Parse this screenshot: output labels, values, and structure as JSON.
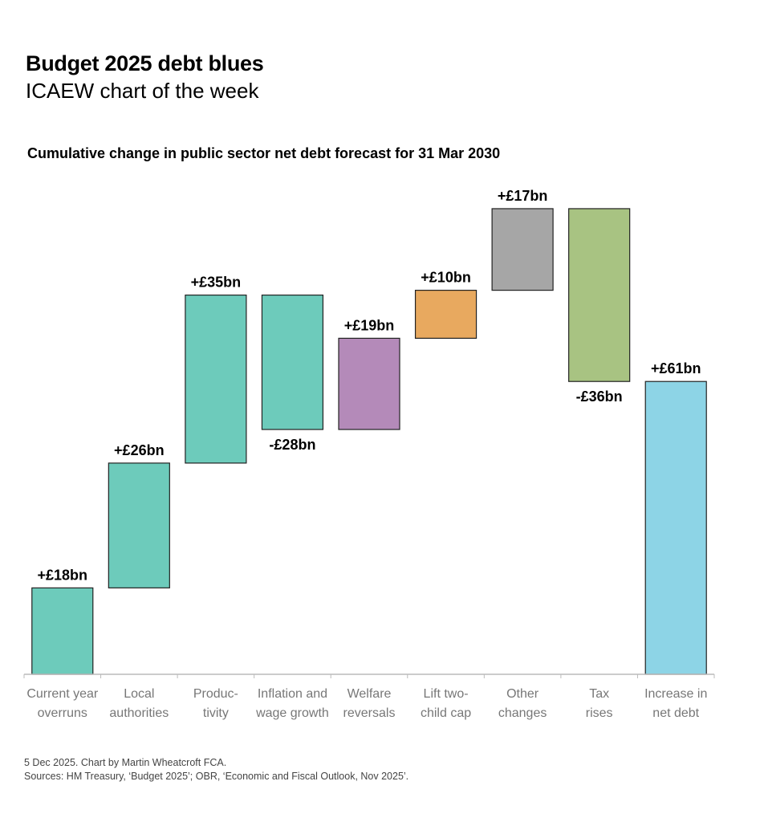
{
  "header": {
    "title": "Budget 2025 debt blues",
    "subtitle": "ICAEW chart of the week"
  },
  "chart_data": {
    "type": "waterfall",
    "title": "Cumulative change in public sector net debt forecast for 31 Mar 2030",
    "unit": "£bn",
    "categories": [
      [
        "Current year",
        "overruns"
      ],
      [
        "Local",
        "authorities"
      ],
      [
        "Produc-",
        "tivity"
      ],
      [
        "Inflation and",
        "wage growth"
      ],
      [
        "Welfare",
        "reversals"
      ],
      [
        "Lift two-",
        "child cap"
      ],
      [
        "Other",
        "changes"
      ],
      [
        "Tax",
        "rises"
      ],
      [
        "Increase in",
        "net debt"
      ]
    ],
    "values": [
      18,
      26,
      35,
      -28,
      19,
      10,
      17,
      -36,
      61
    ],
    "is_total": [
      false,
      false,
      false,
      false,
      false,
      false,
      false,
      false,
      true
    ],
    "labels": [
      "+£18bn",
      "+£26bn",
      "+£35bn",
      "-£28bn",
      "+£19bn",
      "+£10bn",
      "+£17bn",
      "-£36bn",
      "+£61bn"
    ],
    "colors": [
      "#6dcbbb",
      "#6dcbbb",
      "#6dcbbb",
      "#6dcbbb",
      "#b48ab9",
      "#e8a95f",
      "#a6a6a6",
      "#a8c382",
      "#8dd4e6"
    ],
    "ylim": [
      0,
      100
    ],
    "grid": false
  },
  "footer": {
    "line1": "5 Dec 2025.   Chart by Martin Wheatcroft FCA.",
    "line2": "Sources: HM Treasury, ‘Budget 2025’; OBR, ‘Economic and Fiscal Outlook, Nov 2025’."
  }
}
